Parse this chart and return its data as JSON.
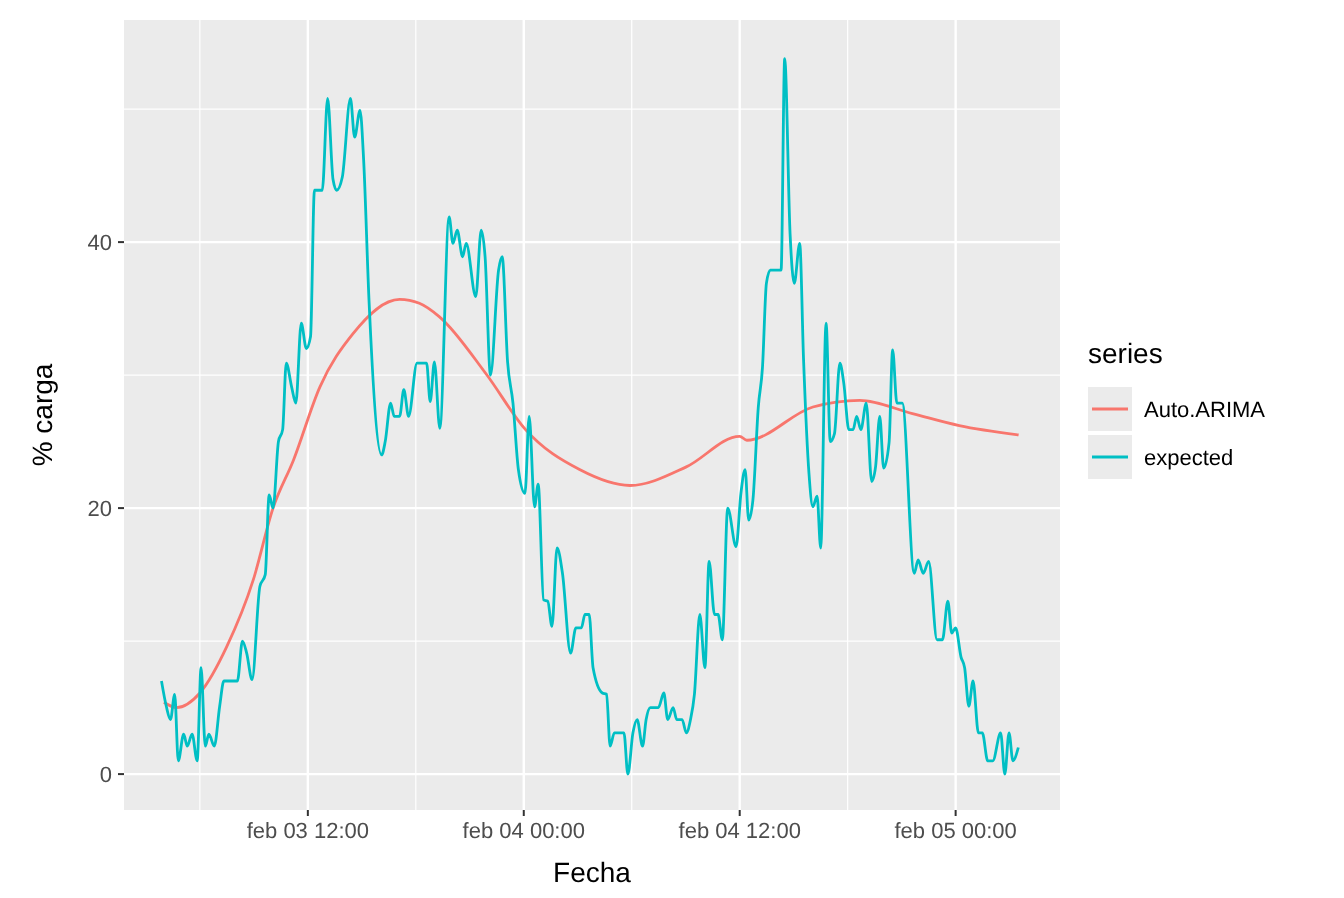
{
  "chart_data": {
    "type": "line",
    "xlabel": "Fecha",
    "ylabel": "% carga",
    "legend_title": "series",
    "legend": "right",
    "grid": true,
    "xlim": [
      "--02-03T01:47",
      "--02-05T05:48"
    ],
    "ylim": [
      -2.7,
      56.7
    ],
    "xticks": [
      {
        "value": "--02-03T12:00",
        "label": "feb 03 12:00"
      },
      {
        "value": "--02-04T00:00",
        "label": "feb 04 00:00"
      },
      {
        "value": "--02-04T12:00",
        "label": "feb 04 12:00"
      },
      {
        "value": "--02-05T00:00",
        "label": "feb 05 00:00"
      }
    ],
    "yticks": [
      0,
      20,
      40
    ],
    "series": [
      {
        "name": "Auto.ARIMA",
        "color": "#f8766d",
        "x": [
          "--02-03T04:00",
          "--02-03T04:42",
          "--02-03T06:00",
          "--02-03T07:30",
          "--02-03T08:58",
          "--02-03T10:04",
          "--02-03T11:12",
          "--02-03T12:40",
          "--02-03T14:30",
          "--02-03T17:06",
          "--02-03T18:12",
          "--02-03T19:18",
          "--02-03T21:54",
          "--02-04T00:06",
          "--02-04T03:06",
          "--02-04T05:54",
          "--02-04T09:02",
          "--02-04T12:00",
          "--02-04T12:24",
          "--02-04T16:04",
          "--02-04T18:40",
          "--02-04T21:36",
          "--02-05T00:12",
          "--02-05T03:30"
        ],
        "values": [
          5.4,
          5.0,
          6.1,
          9.6,
          14.6,
          20.0,
          23.6,
          29.1,
          33.1,
          35.7,
          35.4,
          34.4,
          30.1,
          25.9,
          22.9,
          21.7,
          23.1,
          25.4,
          25.1,
          27.6,
          28.1,
          27.1,
          26.2,
          25.5
        ]
      },
      {
        "name": "expected",
        "color": "#00bfc4",
        "x": [
          "--02-03T03:52",
          "--02-03T04:08",
          "--02-03T04:22",
          "--02-03T04:36",
          "--02-03T04:48",
          "--02-03T05:06",
          "--02-03T05:18",
          "--02-03T05:34",
          "--02-03T05:51",
          "--02-03T06:04",
          "--02-03T06:18",
          "--02-03T06:30",
          "--02-03T06:48",
          "--02-03T07:06",
          "--02-03T07:20",
          "--02-03T08:05",
          "--02-03T08:22",
          "--02-03T08:36",
          "--02-03T08:54",
          "--02-03T09:20",
          "--02-03T09:38",
          "--02-03T09:51",
          "--02-03T10:04",
          "--02-03T10:22",
          "--02-03T10:36",
          "--02-03T10:48",
          "--02-03T11:06",
          "--02-03T11:20",
          "--02-03T11:38",
          "--02-03T11:55",
          "--02-03T12:09",
          "--02-03T12:22",
          "--02-03T12:48",
          "--02-03T13:06",
          "--02-03T13:24",
          "--02-03T13:36",
          "--02-03T13:55",
          "--02-03T14:22",
          "--02-03T14:36",
          "--02-03T14:54",
          "--02-03T15:06",
          "--02-03T15:24",
          "--02-03T16:06",
          "--02-03T16:18",
          "--02-03T16:36",
          "--02-03T16:48",
          "--02-03T17:06",
          "--02-03T17:20",
          "--02-03T17:36",
          "--02-03T18:04",
          "--02-03T18:36",
          "--02-03T18:48",
          "--02-03T19:02",
          "--02-03T19:20",
          "--02-03T19:51",
          "--02-03T20:04",
          "--02-03T20:18",
          "--02-03T20:36",
          "--02-03T20:48",
          "--02-03T21:20",
          "--02-03T21:38",
          "--02-03T21:51",
          "--02-03T22:09",
          "--02-03T22:36",
          "--02-03T22:48",
          "--02-03T23:06",
          "--02-03T23:24",
          "--02-03T23:42",
          "--02-04T00:04",
          "--02-04T00:18",
          "--02-04T00:36",
          "--02-04T00:48",
          "--02-04T01:06",
          "--02-04T01:20",
          "--02-04T01:34",
          "--02-04T01:51",
          "--02-04T02:09",
          "--02-04T02:36",
          "--02-04T02:54",
          "--02-04T03:12",
          "--02-04T03:24",
          "--02-04T03:38",
          "--02-04T03:51",
          "--02-04T04:22",
          "--02-04T04:36",
          "--02-04T04:48",
          "--02-04T05:02",
          "--02-04T05:16",
          "--02-04T05:34",
          "--02-04T05:47",
          "--02-04T06:04",
          "--02-04T06:18",
          "--02-04T06:36",
          "--02-04T06:48",
          "--02-04T07:02",
          "--02-04T07:29",
          "--02-04T07:47",
          "--02-04T08:00",
          "--02-04T08:18",
          "--02-04T08:30",
          "--02-04T08:48",
          "--02-04T09:02",
          "--02-04T09:16",
          "--02-04T09:29",
          "--02-04T09:47",
          "--02-04T10:04",
          "--02-04T10:18",
          "--02-04T10:36",
          "--02-04T10:48",
          "--02-04T11:02",
          "--02-04T11:20",
          "--02-04T11:48",
          "--02-04T12:04",
          "--02-04T12:18",
          "--02-04T12:30",
          "--02-04T12:44",
          "--02-04T13:02",
          "--02-04T13:16",
          "--02-04T13:29",
          "--02-04T13:42",
          "--02-04T14:18",
          "--02-04T14:30",
          "--02-04T14:48",
          "--02-04T15:02",
          "--02-04T15:20",
          "--02-04T15:33",
          "--02-04T15:51",
          "--02-04T16:04",
          "--02-04T16:18",
          "--02-04T16:30",
          "--02-04T16:48",
          "--02-04T17:02",
          "--02-04T17:16",
          "--02-04T17:34",
          "--02-04T17:47",
          "--02-04T18:04",
          "--02-04T18:18",
          "--02-04T18:30",
          "--02-04T18:44",
          "--02-04T19:02",
          "--02-04T19:20",
          "--02-04T19:33",
          "--02-04T19:47",
          "--02-04T20:00",
          "--02-04T20:18",
          "--02-04T20:30",
          "--02-04T20:44",
          "--02-04T21:02",
          "--02-04T21:42",
          "--02-04T21:55",
          "--02-04T22:12",
          "--02-04T22:30",
          "--02-04T22:58",
          "--02-04T23:16",
          "--02-04T23:34",
          "--02-04T23:47",
          "--02-05T00:00",
          "--02-05T00:18",
          "--02-05T00:30",
          "--02-05T00:44",
          "--02-05T00:58",
          "--02-05T01:16",
          "--02-05T01:29",
          "--02-05T01:47",
          "--02-05T02:04",
          "--02-05T02:30",
          "--02-05T02:44",
          "--02-05T02:58",
          "--02-05T03:11",
          "--02-05T03:29"
        ],
        "values": [
          7.0,
          5.1,
          4.1,
          6.0,
          1.0,
          3.0,
          2.1,
          3.0,
          1.0,
          8.0,
          2.1,
          3.0,
          2.1,
          5.1,
          7.0,
          7.0,
          10.0,
          9.1,
          7.1,
          14.1,
          15.0,
          21.0,
          20.0,
          25.0,
          25.9,
          30.9,
          29.1,
          27.9,
          33.9,
          32.0,
          32.9,
          43.9,
          43.9,
          50.8,
          44.7,
          43.9,
          44.9,
          50.8,
          47.9,
          49.9,
          46.2,
          35.6,
          24.0,
          25.0,
          27.9,
          26.9,
          26.9,
          28.9,
          26.9,
          30.9,
          30.9,
          28.0,
          31.0,
          26.0,
          41.9,
          39.9,
          40.9,
          38.9,
          39.9,
          35.9,
          40.9,
          38.9,
          30.0,
          37.9,
          38.9,
          31.0,
          27.9,
          22.9,
          21.1,
          26.9,
          20.1,
          21.8,
          13.1,
          13.0,
          11.1,
          17.0,
          15.1,
          9.1,
          11.0,
          11.0,
          12.0,
          12.0,
          8.0,
          6.1,
          6.0,
          2.1,
          3.1,
          3.1,
          3.1,
          0.0,
          3.1,
          4.1,
          2.1,
          4.1,
          5.0,
          5.0,
          6.1,
          4.1,
          5.0,
          4.1,
          4.1,
          3.1,
          4.1,
          6.0,
          12.0,
          8.0,
          16.0,
          12.0,
          12.0,
          10.1,
          20.0,
          17.1,
          21.1,
          22.9,
          19.1,
          20.6,
          27.6,
          30.6,
          36.9,
          37.9,
          37.9,
          53.8,
          40.6,
          36.9,
          39.9,
          31.1,
          22.6,
          20.1,
          20.9,
          17.0,
          33.9,
          25.0,
          25.6,
          30.9,
          29.4,
          25.9,
          25.9,
          26.9,
          25.9,
          27.9,
          22.0,
          23.1,
          26.9,
          23.0,
          24.9,
          31.9,
          27.9,
          27.9,
          15.1,
          16.1,
          15.1,
          16.0,
          10.1,
          10.1,
          13.0,
          10.6,
          11.0,
          8.8,
          8.0,
          5.1,
          7.0,
          3.1,
          3.1,
          1.0,
          1.0,
          3.1,
          0.0,
          3.1,
          1.0,
          2.0
        ]
      }
    ]
  }
}
